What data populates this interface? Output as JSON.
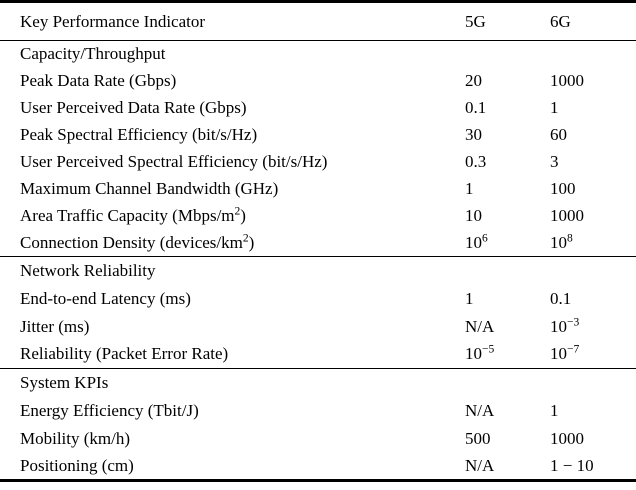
{
  "colors": {
    "background": "#ffffff",
    "text": "#000000",
    "rule": "#000000"
  },
  "table": {
    "header": {
      "kpi": "Key Performance Indicator",
      "col5g": "5G",
      "col6g": "6G"
    },
    "sections": [
      {
        "title": "Capacity/Throughput",
        "rows": [
          {
            "label": "Peak Data Rate (Gbps)",
            "v5g": "20",
            "v6g": "1000"
          },
          {
            "label": "User Perceived Data Rate (Gbps)",
            "v5g": "0.1",
            "v6g": "1"
          },
          {
            "label": "Peak Spectral Efficiency (bit/s/Hz)",
            "v5g": "30",
            "v6g": "60"
          },
          {
            "label": "User Perceived Spectral Efficiency (bit/s/Hz)",
            "v5g": "0.3",
            "v6g": "3"
          },
          {
            "label": "Maximum Channel Bandwidth (GHz)",
            "v5g": "1",
            "v6g": "100"
          },
          {
            "label": "Area Traffic Capacity (Mbps/m^{2})",
            "v5g": "10",
            "v6g": "1000"
          },
          {
            "label": "Connection Density (devices/km^{2})",
            "v5g": "10^{6}",
            "v6g": "10^{8}"
          }
        ]
      },
      {
        "title": "Network Reliability",
        "rows": [
          {
            "label": "End-to-end Latency (ms)",
            "v5g": "1",
            "v6g": "0.1"
          },
          {
            "label": "Jitter (ms)",
            "v5g": "N/A",
            "v6g": "10^{−3}"
          },
          {
            "label": "Reliability (Packet Error Rate)",
            "v5g": "10^{−5}",
            "v6g": "10^{−7}"
          }
        ]
      },
      {
        "title": "System KPIs",
        "rows": [
          {
            "label": "Energy Efficiency (Tbit/J)",
            "v5g": "N/A",
            "v6g": "1"
          },
          {
            "label": "Mobility (km/h)",
            "v5g": "500",
            "v6g": "1000"
          },
          {
            "label": "Positioning (cm)",
            "v5g": "N/A",
            "v6g": "1 − 10"
          }
        ]
      }
    ]
  }
}
